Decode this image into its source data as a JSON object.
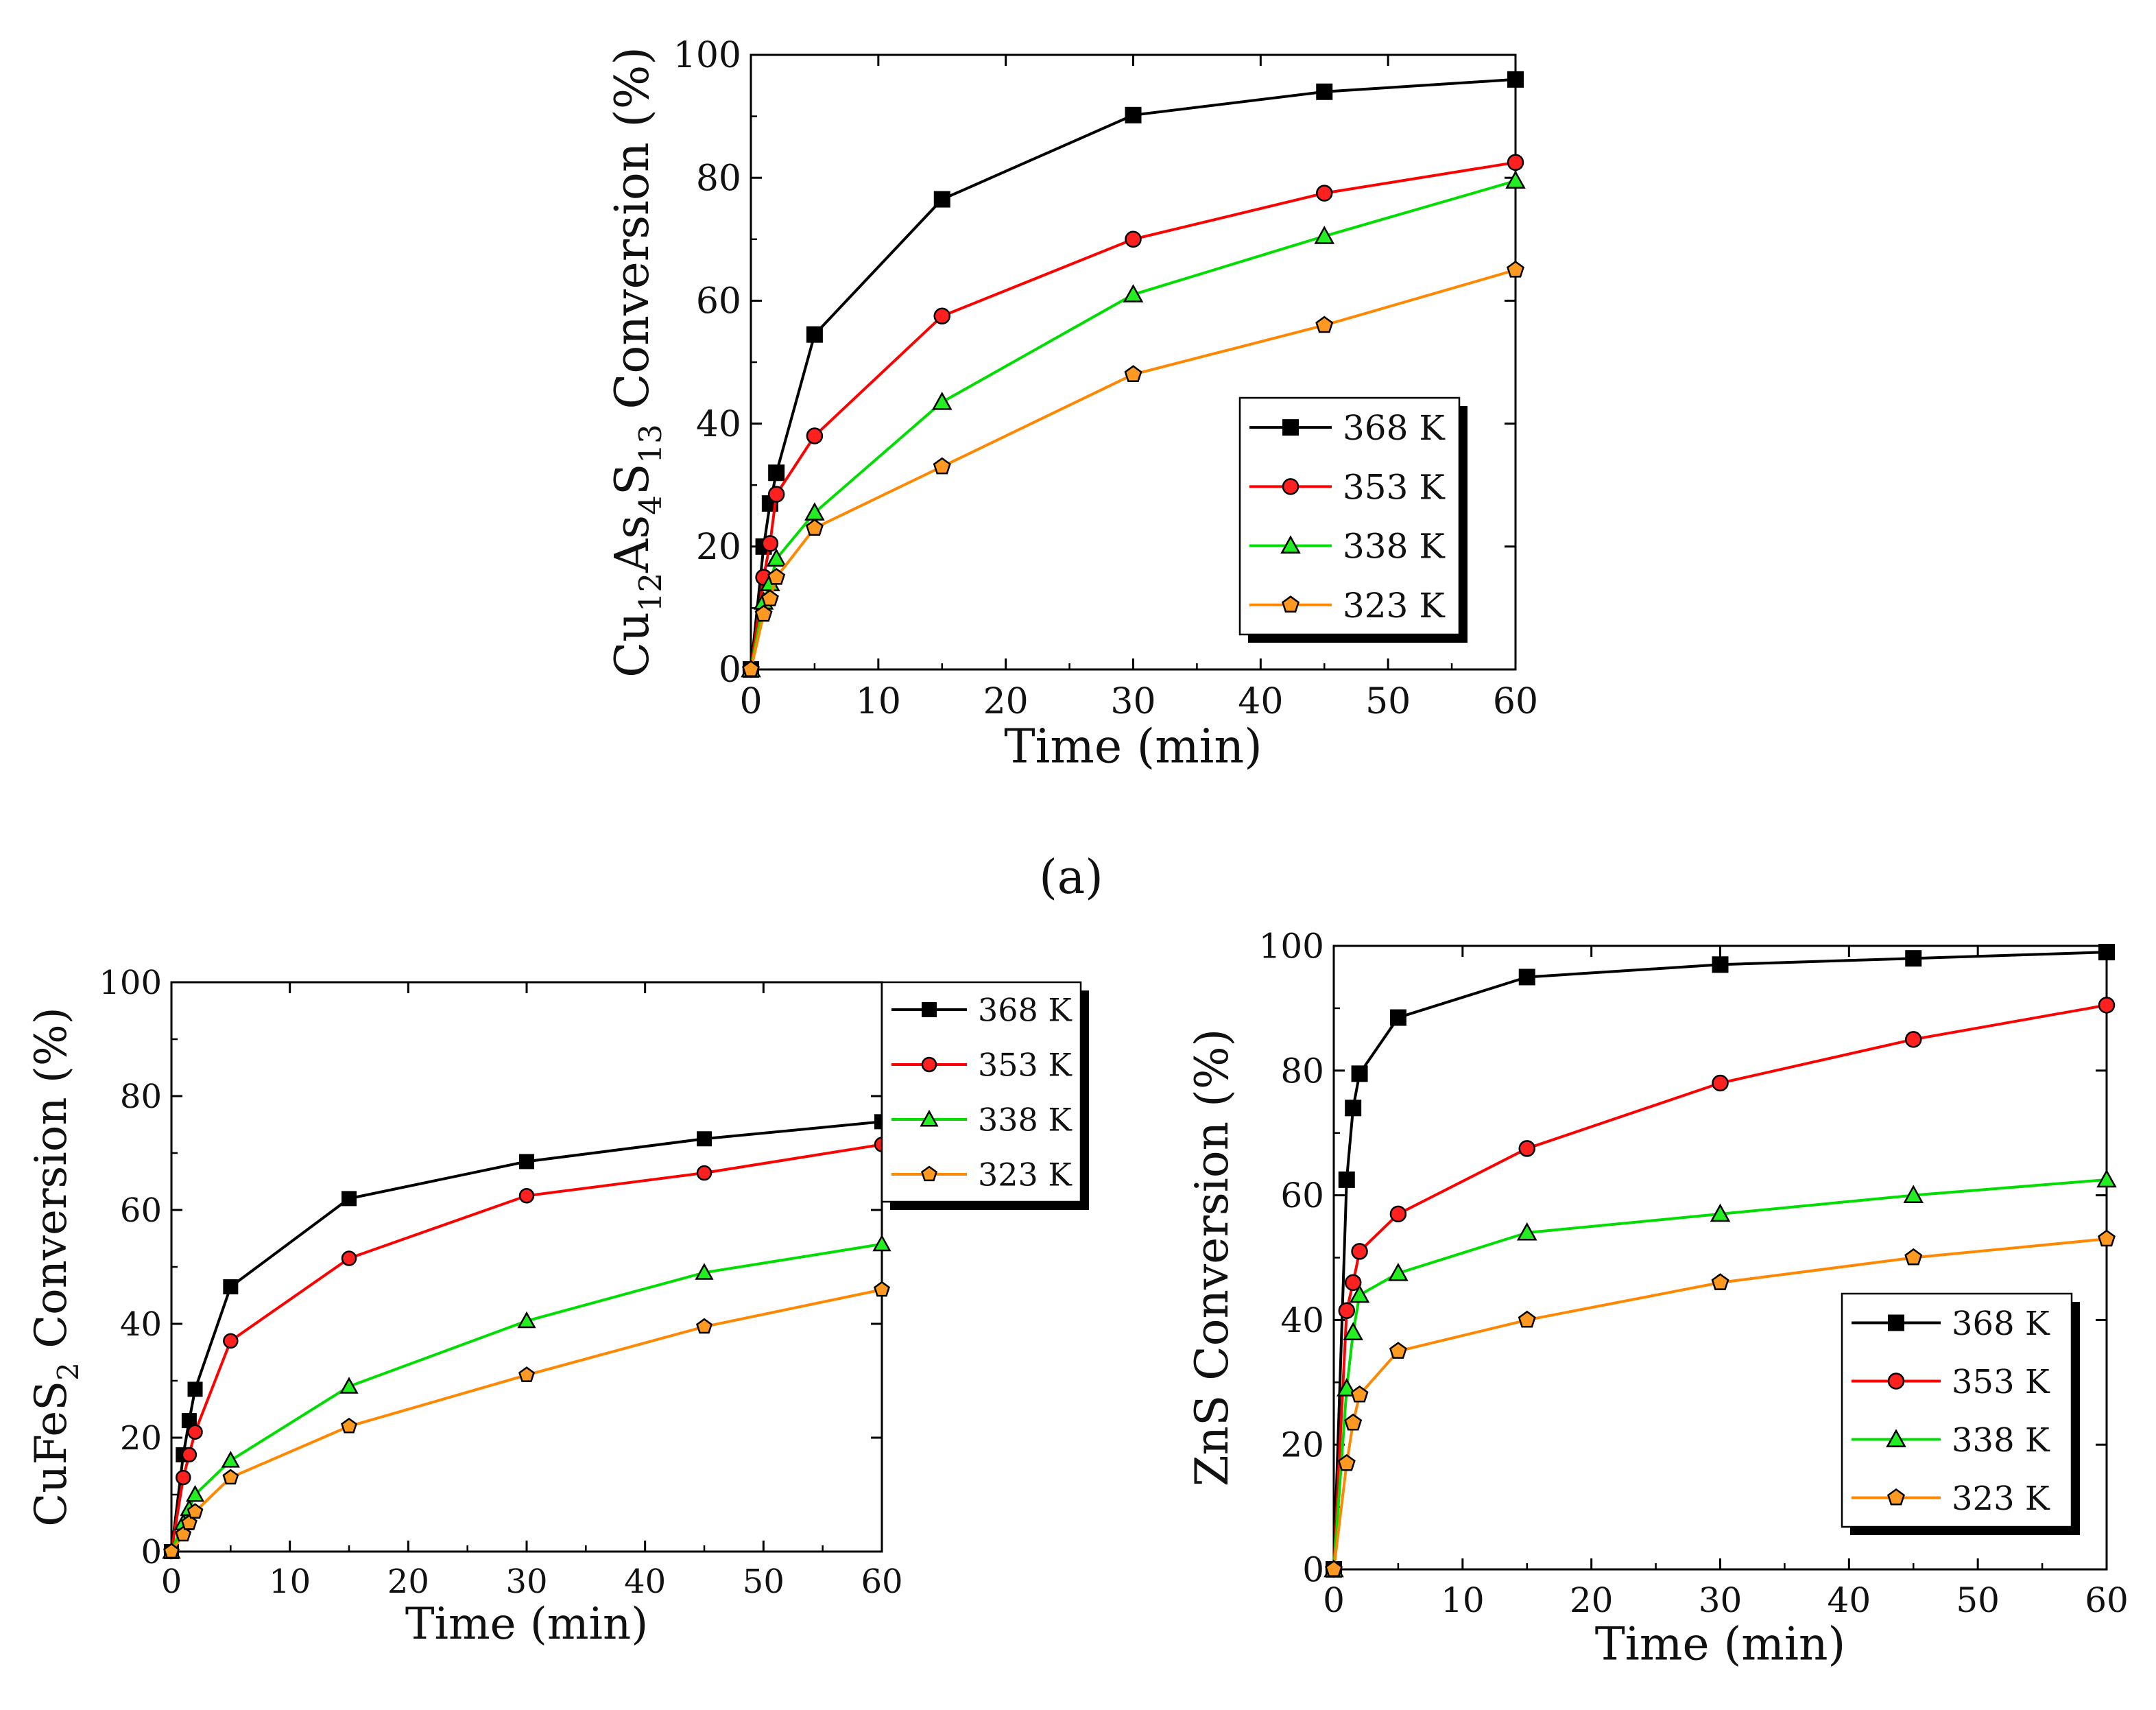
{
  "panel_label_a": "(a)",
  "chart_data": [
    {
      "type": "line",
      "ylabel_parts": [
        {
          "t": "Cu",
          "sub": false
        },
        {
          "t": "12",
          "sub": true
        },
        {
          "t": "As",
          "sub": false
        },
        {
          "t": "4",
          "sub": true
        },
        {
          "t": "S",
          "sub": false
        },
        {
          "t": "13",
          "sub": true
        },
        {
          "t": " Conversion (%)",
          "sub": false
        }
      ],
      "xlabel": "Time (min)",
      "xlim": [
        0,
        60
      ],
      "ylim": [
        0,
        100
      ],
      "xticks": [
        0,
        10,
        20,
        30,
        40,
        50,
        60
      ],
      "yticks": [
        0,
        20,
        40,
        60,
        80,
        100
      ],
      "legend_position": "lower-right",
      "x": [
        0,
        1,
        1.5,
        2,
        5,
        15,
        30,
        45,
        60
      ],
      "series": [
        {
          "name": "368 K",
          "color": "#000000",
          "marker": "square",
          "values": [
            0,
            20,
            27,
            32,
            54.5,
            76.5,
            90.2,
            94,
            96
          ]
        },
        {
          "name": "353 K",
          "color": "#ff0000",
          "marker": "circle",
          "values": [
            0,
            15,
            20.5,
            28.5,
            38,
            57.5,
            70,
            77.5,
            82.5
          ]
        },
        {
          "name": "338 K",
          "color": "#00dd00",
          "marker": "triangle",
          "values": [
            0,
            11,
            14,
            18,
            25.5,
            43.5,
            61,
            70.5,
            79.5
          ]
        },
        {
          "name": "323 K",
          "color": "#ff8800",
          "marker": "pentagon",
          "values": [
            0,
            9,
            11.5,
            15,
            23,
            33,
            48,
            56,
            65
          ]
        }
      ]
    },
    {
      "type": "line",
      "ylabel_parts": [
        {
          "t": "CuFeS",
          "sub": false
        },
        {
          "t": "2",
          "sub": true
        },
        {
          "t": " Conversion (%)",
          "sub": false
        }
      ],
      "xlabel": "Time (min)",
      "xlim": [
        0,
        60
      ],
      "ylim": [
        0,
        100
      ],
      "xticks": [
        0,
        10,
        20,
        30,
        40,
        50,
        60
      ],
      "yticks": [
        0,
        20,
        40,
        60,
        80,
        100
      ],
      "legend_position": "outside-top-right",
      "x": [
        0,
        1,
        1.5,
        2,
        5,
        15,
        30,
        45,
        60
      ],
      "series": [
        {
          "name": "368 K",
          "color": "#000000",
          "marker": "square",
          "values": [
            0,
            17,
            23,
            28.5,
            46.5,
            62,
            68.5,
            72.5,
            75.5
          ]
        },
        {
          "name": "353 K",
          "color": "#ff0000",
          "marker": "circle",
          "values": [
            0,
            13,
            17,
            21,
            37,
            51.5,
            62.5,
            66.5,
            71.5
          ]
        },
        {
          "name": "338 K",
          "color": "#00dd00",
          "marker": "triangle",
          "values": [
            0,
            5,
            7.5,
            10,
            16,
            29,
            40.5,
            49,
            54
          ]
        },
        {
          "name": "323 K",
          "color": "#ff8800",
          "marker": "pentagon",
          "values": [
            0,
            3,
            5,
            7,
            13,
            22,
            31,
            39.5,
            46
          ]
        }
      ]
    },
    {
      "type": "line",
      "ylabel_parts": [
        {
          "t": "ZnS Conversion (%)",
          "sub": false
        }
      ],
      "xlabel": "Time (min)",
      "xlim": [
        0,
        60
      ],
      "ylim": [
        0,
        100
      ],
      "xticks": [
        0,
        10,
        20,
        30,
        40,
        50,
        60
      ],
      "yticks": [
        0,
        20,
        40,
        60,
        80,
        100
      ],
      "legend_position": "lower-right",
      "x": [
        0,
        1,
        1.5,
        2,
        5,
        15,
        30,
        45,
        60
      ],
      "series": [
        {
          "name": "368 K",
          "color": "#000000",
          "marker": "square",
          "values": [
            0,
            62.5,
            74,
            79.5,
            88.5,
            95,
            97,
            98,
            99
          ]
        },
        {
          "name": "353 K",
          "color": "#ff0000",
          "marker": "circle",
          "values": [
            0,
            41.5,
            46,
            51,
            57,
            67.5,
            78,
            85,
            90.5
          ]
        },
        {
          "name": "338 K",
          "color": "#00dd00",
          "marker": "triangle",
          "values": [
            0,
            29,
            38,
            44,
            47.5,
            54,
            57,
            60,
            62.5
          ]
        },
        {
          "name": "323 K",
          "color": "#ff8800",
          "marker": "pentagon",
          "values": [
            0,
            17,
            23.5,
            28,
            35,
            40,
            46,
            50,
            53
          ]
        }
      ]
    }
  ]
}
